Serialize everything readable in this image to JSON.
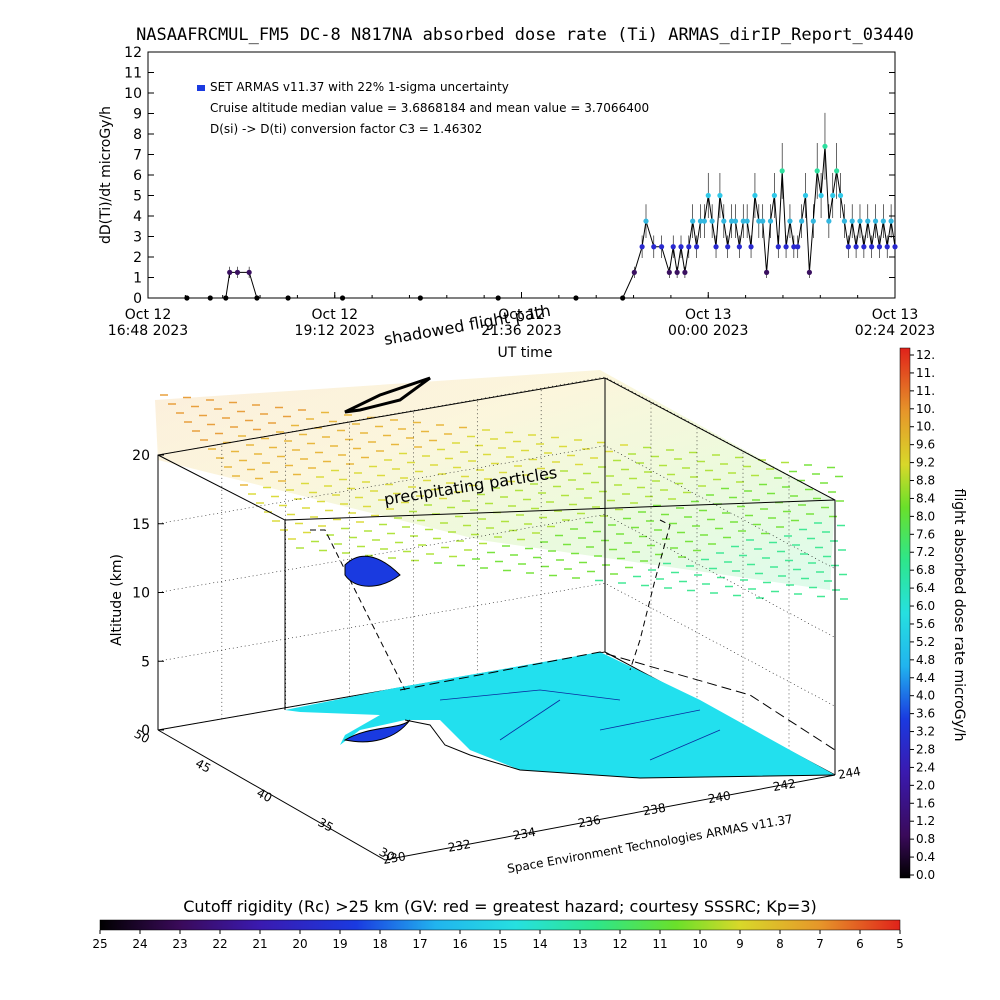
{
  "title": "NASAAFRCMUL_FM5 DC-8   N817NA absorbed dose rate (Ti) ARMAS_dirIP_Report_03440",
  "top_panel": {
    "ylabel": "dD(Ti)/dt microGy/h",
    "xlabel": "UT time",
    "legend": {
      "series_label": "SET ARMAS v11.37 with 22% 1-sigma uncertainty",
      "line2": "Cruise altitude median value = 3.6868184 and mean value = 3.7066400",
      "line3": "D(si) -> D(ti) conversion factor C3 = 1.46302"
    },
    "x_ticks": [
      {
        "l1": "Oct 12",
        "l2": "16:48 2023"
      },
      {
        "l1": "Oct 12",
        "l2": "19:12 2023"
      },
      {
        "l1": "Oct 12",
        "l2": "21:36 2023"
      },
      {
        "l1": "Oct 13",
        "l2": "00:00 2023"
      },
      {
        "l1": "Oct 13",
        "l2": "02:24 2023"
      }
    ],
    "y_ticks": [
      "0",
      "1",
      "2",
      "3",
      "4",
      "5",
      "6",
      "7",
      "8",
      "9",
      "10",
      "11",
      "12"
    ]
  },
  "panel3d": {
    "zlabel": "Altitude (km)",
    "z_ticks": [
      "0",
      "5",
      "10",
      "15",
      "20"
    ],
    "lat_ticks": [
      "50",
      "45",
      "40",
      "35",
      "30"
    ],
    "lon_ticks": [
      "230",
      "232",
      "234",
      "236",
      "238",
      "240",
      "242",
      "244"
    ],
    "annotation_shadowed": "shadowed flight path",
    "annotation_precip": "precipitating particles",
    "credit": "Space Environment Technologies ARMAS v11.37"
  },
  "colorbar_right": {
    "label": "flight absorbed dose rate microGy/h",
    "ticks": [
      "12.",
      "11.",
      "11.",
      "10.",
      "10.",
      "9.6",
      "9.2",
      "8.8",
      "8.4",
      "8.0",
      "7.6",
      "7.2",
      "6.8",
      "6.4",
      "6.0",
      "5.6",
      "5.2",
      "4.8",
      "4.4",
      "4.0",
      "3.6",
      "3.2",
      "2.8",
      "2.4",
      "2.0",
      "1.6",
      "1.2",
      "0.8",
      "0.4",
      "0.0"
    ]
  },
  "colorbar_bottom": {
    "title": "Cutoff rigidity (Rc) >25 km (GV: red = greatest hazard; courtesy SSSRC; Kp=3)",
    "ticks": [
      "25",
      "24",
      "23",
      "22",
      "21",
      "20",
      "19",
      "18",
      "17",
      "16",
      "15",
      "14",
      "13",
      "12",
      "11",
      "10",
      "9",
      "8",
      "7",
      "6",
      "5"
    ]
  },
  "colors": {
    "dose_colormap": [
      "#000000",
      "#3a0a5a",
      "#4a1aa0",
      "#1a2ad8",
      "#1e6ae6",
      "#21b8ec",
      "#26e0e0",
      "#2ee68a",
      "#55e02a",
      "#b8e02a",
      "#e6c82a",
      "#e68a2a",
      "#e02a1a"
    ],
    "ocean": "#22e0ee",
    "marker_low": "#3a1060",
    "marker_mid": "#2a2ad0",
    "marker_high": "#34b8e0",
    "marker_peak": "#2ee0a0"
  },
  "chart_data": {
    "type": "scatter",
    "title": "NASAAFRCMUL_FM5 DC-8   N817NA absorbed dose rate (Ti) ARMAS_dirIP_Report_03440",
    "xlabel": "UT time",
    "ylabel": "dD(Ti)/dt microGy/h",
    "ylim": [
      0,
      12
    ],
    "x_unit": "hours since Oct 12 16:48 2023 UT",
    "xlim": [
      0,
      9.6
    ],
    "grid": false,
    "series": [
      {
        "name": "SET ARMAS v11.37 with 22% 1-sigma uncertainty",
        "points": [
          [
            0.5,
            0
          ],
          [
            0.8,
            0
          ],
          [
            1.0,
            0
          ],
          [
            1.05,
            1.25
          ],
          [
            1.15,
            1.25
          ],
          [
            1.3,
            1.25
          ],
          [
            1.4,
            0
          ],
          [
            1.8,
            0
          ],
          [
            2.5,
            0
          ],
          [
            3.5,
            0
          ],
          [
            4.5,
            0
          ],
          [
            5.5,
            0
          ],
          [
            6.1,
            0
          ],
          [
            6.25,
            1.25
          ],
          [
            6.35,
            2.5
          ],
          [
            6.4,
            3.75
          ],
          [
            6.5,
            2.5
          ],
          [
            6.6,
            2.5
          ],
          [
            6.7,
            1.25
          ],
          [
            6.75,
            2.5
          ],
          [
            6.8,
            1.25
          ],
          [
            6.85,
            2.5
          ],
          [
            6.9,
            1.25
          ],
          [
            6.95,
            2.5
          ],
          [
            7.0,
            3.75
          ],
          [
            7.05,
            2.5
          ],
          [
            7.1,
            3.75
          ],
          [
            7.15,
            3.75
          ],
          [
            7.2,
            5.0
          ],
          [
            7.25,
            3.75
          ],
          [
            7.3,
            2.5
          ],
          [
            7.35,
            5.0
          ],
          [
            7.4,
            3.75
          ],
          [
            7.45,
            2.5
          ],
          [
            7.5,
            3.75
          ],
          [
            7.55,
            3.75
          ],
          [
            7.6,
            2.5
          ],
          [
            7.65,
            3.75
          ],
          [
            7.7,
            3.75
          ],
          [
            7.75,
            2.5
          ],
          [
            7.8,
            5.0
          ],
          [
            7.85,
            3.75
          ],
          [
            7.9,
            3.75
          ],
          [
            7.95,
            1.25
          ],
          [
            8.0,
            3.75
          ],
          [
            8.05,
            5.0
          ],
          [
            8.1,
            2.5
          ],
          [
            8.15,
            6.2
          ],
          [
            8.2,
            2.5
          ],
          [
            8.25,
            3.75
          ],
          [
            8.3,
            2.5
          ],
          [
            8.35,
            2.5
          ],
          [
            8.4,
            3.75
          ],
          [
            8.45,
            5.0
          ],
          [
            8.5,
            1.25
          ],
          [
            8.55,
            3.75
          ],
          [
            8.6,
            6.2
          ],
          [
            8.65,
            5.0
          ],
          [
            8.7,
            7.4
          ],
          [
            8.75,
            3.75
          ],
          [
            8.8,
            5.0
          ],
          [
            8.85,
            6.2
          ],
          [
            8.9,
            5.0
          ],
          [
            8.95,
            3.75
          ],
          [
            9.0,
            2.5
          ],
          [
            9.05,
            3.75
          ],
          [
            9.1,
            2.5
          ],
          [
            9.15,
            3.75
          ],
          [
            9.2,
            2.5
          ],
          [
            9.25,
            3.75
          ],
          [
            9.3,
            2.5
          ],
          [
            9.35,
            3.75
          ],
          [
            9.4,
            2.5
          ],
          [
            9.45,
            3.75
          ],
          [
            9.5,
            2.5
          ],
          [
            9.55,
            3.75
          ],
          [
            9.6,
            2.5
          ]
        ]
      }
    ]
  }
}
